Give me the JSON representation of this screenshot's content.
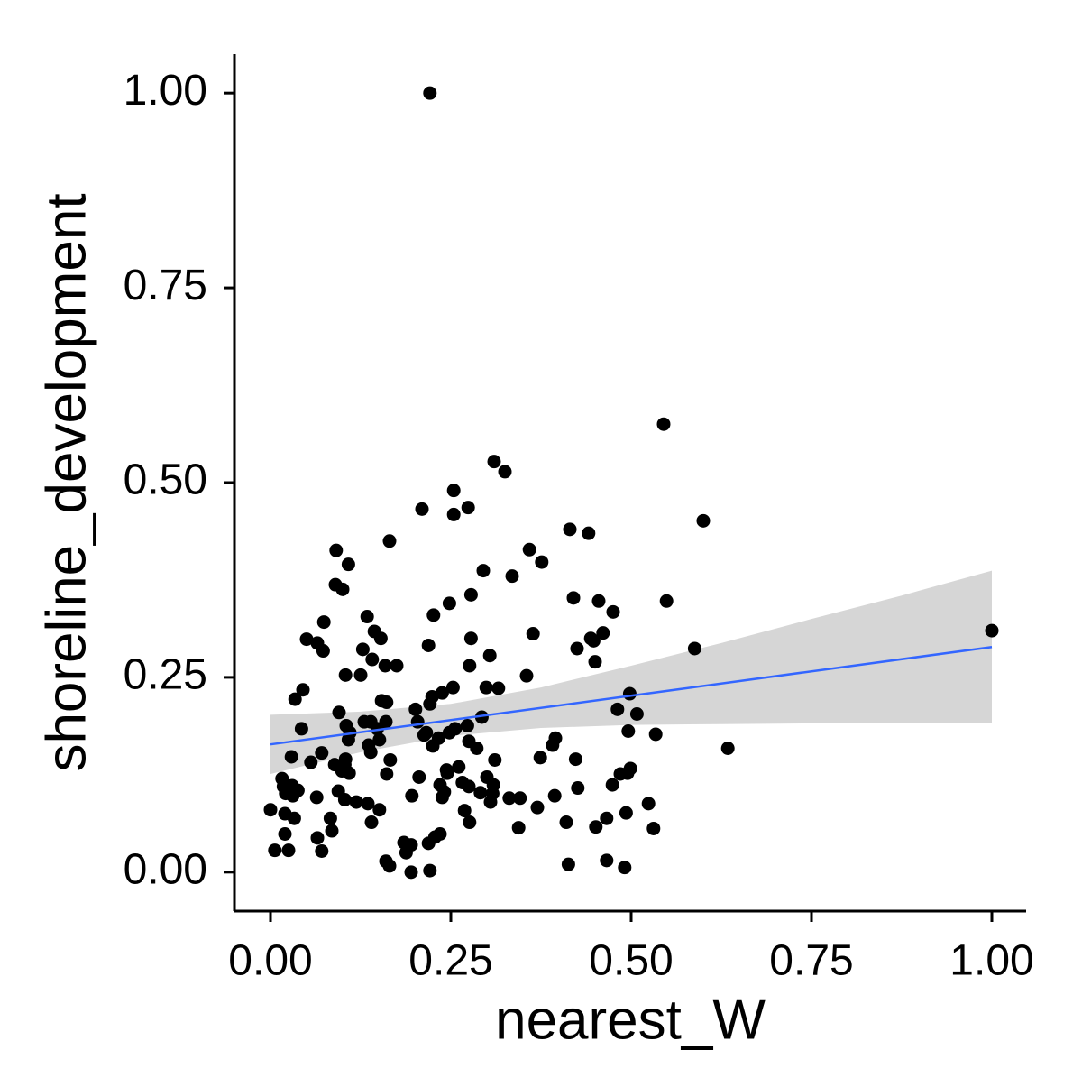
{
  "chart_data": {
    "type": "scatter",
    "x_label": "nearest_W",
    "y_label": "shoreline_development",
    "color": "#000000",
    "xlim": [
      -0.05,
      1.0475
    ],
    "ylim": [
      -0.05,
      1.05
    ],
    "xticks": [
      {
        "value": 0,
        "label": "0.00"
      },
      {
        "value": 0.25,
        "label": "0.25"
      },
      {
        "value": 0.5,
        "label": "0.50"
      },
      {
        "value": 0.75,
        "label": "0.75"
      },
      {
        "value": 1,
        "label": "1.00"
      }
    ],
    "yticks": [
      {
        "value": 0,
        "label": "0.00"
      },
      {
        "value": 0.25,
        "label": "0.25"
      },
      {
        "value": 0.5,
        "label": "0.50"
      },
      {
        "value": 0.75,
        "label": "0.75"
      },
      {
        "value": 1,
        "label": "1.00"
      }
    ],
    "x": [
      0.221,
      0.545,
      0.31,
      0.325,
      0.6,
      0.254,
      0.274,
      0.254,
      0.21,
      0.415,
      0.441,
      0.359,
      0.376,
      0.165,
      0.091,
      0.108,
      0.295,
      0.335,
      0.09,
      0.1,
      0.42,
      0.455,
      0.475,
      0.549,
      0.248,
      0.226,
      0.278,
      0.074,
      0.134,
      0.364,
      0.144,
      0.153,
      0.448,
      0.461,
      0.444,
      0.425,
      0.588,
      1.0,
      0.05,
      0.065,
      0.073,
      0.278,
      0.219,
      0.128,
      0.141,
      0.159,
      0.175,
      0.304,
      0.45,
      0.104,
      0.355,
      0.276,
      0.045,
      0.034,
      0.125,
      0.253,
      0.238,
      0.224,
      0.221,
      0.201,
      0.154,
      0.161,
      0.498,
      0.481,
      0.095,
      0.316,
      0.299,
      0.508,
      0.293,
      0.273,
      0.256,
      0.248,
      0.233,
      0.225,
      0.213,
      0.216,
      0.204,
      0.13,
      0.139,
      0.148,
      0.16,
      0.151,
      0.105,
      0.11,
      0.043,
      0.108,
      0.496,
      0.534,
      0.634,
      0.395,
      0.391,
      0.275,
      0.286,
      0.136,
      0.139,
      0.071,
      0.104,
      0.029,
      0.056,
      0.166,
      0.311,
      0.244,
      0.103,
      0.089,
      0.099,
      0.109,
      0.374,
      0.423,
      0.235,
      0.245,
      0.261,
      0.266,
      0.161,
      0.206,
      0.016,
      0.018,
      0.021,
      0.03,
      0.038,
      0.031,
      0.3,
      0.309,
      0.275,
      0.474,
      0.495,
      0.499,
      0.485,
      0.094,
      0.103,
      0.119,
      0.135,
      0.064,
      0.394,
      0.426,
      0.241,
      0.238,
      0.308,
      0.291,
      0.305,
      0.331,
      0.346,
      0.196,
      0.524,
      0.37,
      0.0,
      0.02,
      0.033,
      0.151,
      0.083,
      0.02,
      0.085,
      0.228,
      0.235,
      0.219,
      0.344,
      0.41,
      0.531,
      0.451,
      0.269,
      0.276,
      0.493,
      0.466,
      0.065,
      0.071,
      0.006,
      0.025,
      0.185,
      0.195,
      0.188,
      0.16,
      0.165,
      0.413,
      0.466,
      0.491,
      0.195,
      0.221,
      0.14
    ],
    "y": [
      1.0,
      0.575,
      0.527,
      0.514,
      0.451,
      0.49,
      0.468,
      0.459,
      0.466,
      0.44,
      0.435,
      0.414,
      0.398,
      0.425,
      0.413,
      0.395,
      0.387,
      0.38,
      0.369,
      0.363,
      0.352,
      0.348,
      0.334,
      0.348,
      0.345,
      0.33,
      0.356,
      0.321,
      0.328,
      0.306,
      0.309,
      0.3,
      0.297,
      0.307,
      0.3,
      0.287,
      0.287,
      0.31,
      0.299,
      0.294,
      0.284,
      0.3,
      0.291,
      0.286,
      0.273,
      0.265,
      0.265,
      0.278,
      0.27,
      0.253,
      0.252,
      0.265,
      0.234,
      0.222,
      0.253,
      0.237,
      0.23,
      0.225,
      0.216,
      0.209,
      0.22,
      0.218,
      0.229,
      0.209,
      0.205,
      0.236,
      0.237,
      0.203,
      0.199,
      0.188,
      0.184,
      0.179,
      0.172,
      0.162,
      0.176,
      0.179,
      0.193,
      0.193,
      0.193,
      0.184,
      0.193,
      0.17,
      0.188,
      0.179,
      0.184,
      0.17,
      0.181,
      0.177,
      0.159,
      0.172,
      0.163,
      0.168,
      0.159,
      0.163,
      0.154,
      0.153,
      0.145,
      0.148,
      0.141,
      0.144,
      0.144,
      0.131,
      0.138,
      0.138,
      0.13,
      0.127,
      0.147,
      0.145,
      0.112,
      0.127,
      0.135,
      0.115,
      0.126,
      0.122,
      0.12,
      0.11,
      0.101,
      0.111,
      0.105,
      0.098,
      0.122,
      0.112,
      0.11,
      0.112,
      0.127,
      0.133,
      0.126,
      0.104,
      0.093,
      0.09,
      0.088,
      0.096,
      0.098,
      0.108,
      0.103,
      0.096,
      0.101,
      0.102,
      0.09,
      0.095,
      0.095,
      0.098,
      0.088,
      0.083,
      0.08,
      0.075,
      0.069,
      0.08,
      0.069,
      0.049,
      0.053,
      0.045,
      0.049,
      0.037,
      0.057,
      0.064,
      0.056,
      0.058,
      0.079,
      0.064,
      0.076,
      0.069,
      0.044,
      0.027,
      0.028,
      0.028,
      0.038,
      0.035,
      0.025,
      0.014,
      0.008,
      0.01,
      0.015,
      0.006,
      0.0,
      0.002,
      0.064
    ],
    "fit": {
      "x": [
        0,
        1
      ],
      "y": [
        0.164,
        0.289
      ],
      "color": "#3366ff"
    },
    "band": {
      "x": [
        0,
        0.125,
        0.25,
        0.375,
        0.5,
        0.625,
        0.75,
        0.875,
        1
      ],
      "lower": [
        0.126,
        0.154,
        0.175,
        0.185,
        0.189,
        0.19,
        0.191,
        0.191,
        0.191
      ],
      "upper": [
        0.202,
        0.206,
        0.216,
        0.237,
        0.265,
        0.294,
        0.325,
        0.355,
        0.387
      ],
      "color": "#d6d6d6"
    }
  }
}
